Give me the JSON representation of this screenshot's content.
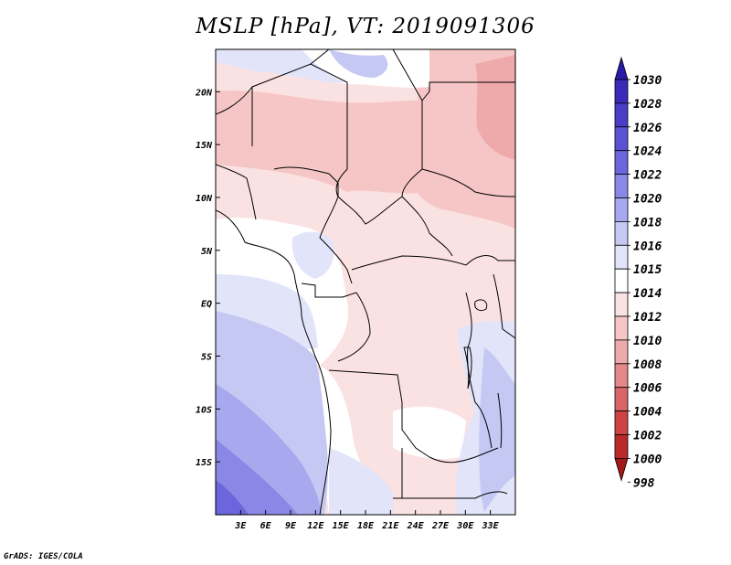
{
  "title": "MSLP [hPa], VT: 2019091306",
  "credit": "GrADS: IGES/COLA",
  "map": {
    "variable": "MSLP",
    "units": "hPa",
    "valid_time": "2019091306",
    "lon_range": [
      0,
      36
    ],
    "lat_range": [
      -20,
      24
    ],
    "x_ticks": [
      {
        "lon": 3,
        "label": "3E"
      },
      {
        "lon": 6,
        "label": "6E"
      },
      {
        "lon": 9,
        "label": "9E"
      },
      {
        "lon": 12,
        "label": "12E"
      },
      {
        "lon": 15,
        "label": "15E"
      },
      {
        "lon": 18,
        "label": "18E"
      },
      {
        "lon": 21,
        "label": "21E"
      },
      {
        "lon": 24,
        "label": "24E"
      },
      {
        "lon": 27,
        "label": "27E"
      },
      {
        "lon": 30,
        "label": "30E"
      },
      {
        "lon": 33,
        "label": "33E"
      }
    ],
    "y_ticks": [
      {
        "lat": 20,
        "label": "20N"
      },
      {
        "lat": 15,
        "label": "15N"
      },
      {
        "lat": 10,
        "label": "10N"
      },
      {
        "lat": 5,
        "label": "5N"
      },
      {
        "lat": 0,
        "label": "EQ"
      },
      {
        "lat": -5,
        "label": "5S"
      },
      {
        "lat": -10,
        "label": "10S"
      },
      {
        "lat": -15,
        "label": "15S"
      }
    ]
  },
  "colorbar": {
    "labels": [
      "1030",
      "1028",
      "1026",
      "1024",
      "1022",
      "1020",
      "1018",
      "1016",
      "1015",
      "1014",
      "1012",
      "1010",
      "1008",
      "1006",
      "1004",
      "1002",
      "1000",
      "998"
    ],
    "colors": [
      "#2a1aa8",
      "#3a2cb8",
      "#4a3ec6",
      "#5a52d2",
      "#6c66dc",
      "#8a88e6",
      "#a8a8ee",
      "#c6c8f4",
      "#e2e4fa",
      "#ffffff",
      "#fbe2e2",
      "#f6c6c6",
      "#eeaaaa",
      "#e48888",
      "#d86666",
      "#cc4444",
      "#bb2a2a",
      "#a01818"
    ]
  }
}
